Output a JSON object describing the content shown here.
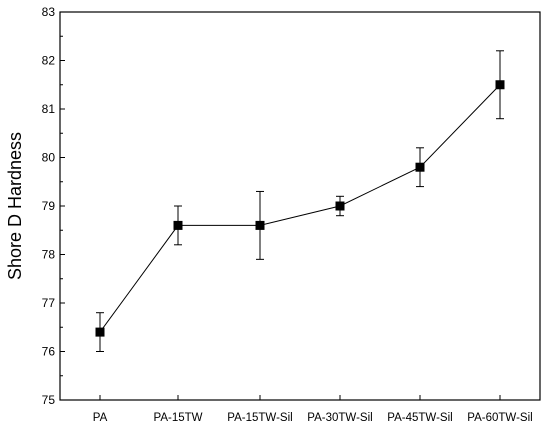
{
  "chart_data": {
    "type": "line",
    "title": "",
    "xlabel": "",
    "ylabel": "Shore D Hardness",
    "categories": [
      "PA",
      "PA-15TW",
      "PA-15TW-Sil",
      "PA-30TW-Sil",
      "PA-45TW-Sil",
      "PA-60TW-Sil"
    ],
    "values": [
      76.4,
      78.6,
      78.6,
      79.0,
      79.8,
      81.5
    ],
    "errors": [
      0.4,
      0.4,
      0.7,
      0.2,
      0.4,
      0.7
    ],
    "ylim": [
      75,
      83
    ],
    "yticks": [
      75,
      76,
      77,
      78,
      79,
      80,
      81,
      82,
      83
    ],
    "grid": false,
    "marker": "square",
    "colors": {
      "line": "#000000",
      "marker": "#000000",
      "axis": "#000000"
    }
  }
}
